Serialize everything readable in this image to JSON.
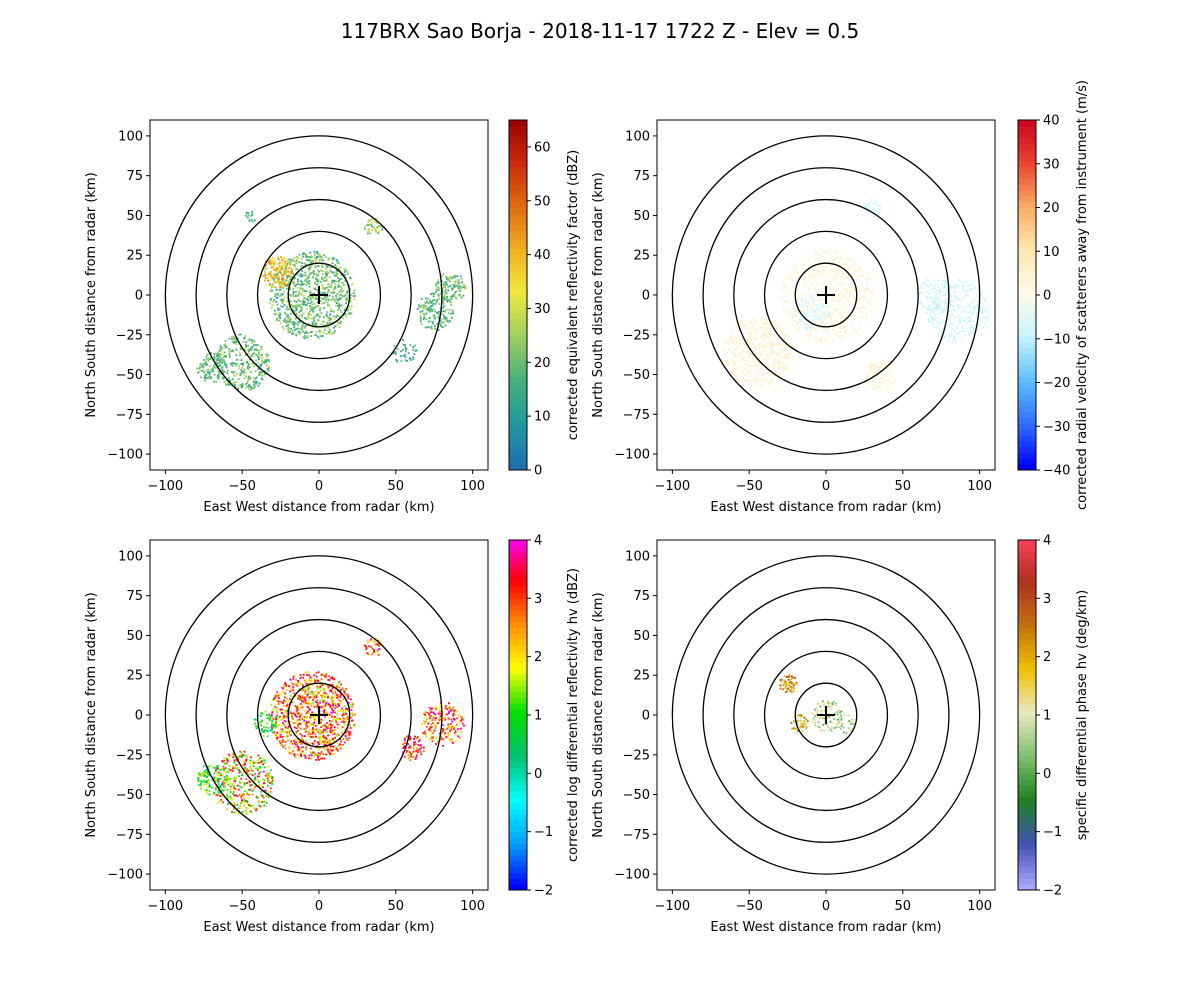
{
  "figure": {
    "title": "117BRX Sao Borja - 2018-11-17 1722 Z -  Elev = 0.5"
  },
  "chart_data": [
    {
      "type": "heatmap",
      "panel": "top-left",
      "field": "reflectivity",
      "xlabel": "East West distance from radar (km)",
      "ylabel": "North South distance from radar (km)",
      "xlim": [
        -110,
        110
      ],
      "ylim": [
        -110,
        110
      ],
      "xticks": [
        -100,
        -50,
        0,
        50,
        100
      ],
      "yticks": [
        -100,
        -75,
        -50,
        -25,
        0,
        25,
        50,
        75,
        100
      ],
      "range_rings_km": [
        20,
        40,
        60,
        80,
        100
      ],
      "colorbar": {
        "label": "corrected equivalent reflectivity factor (dBZ)",
        "min": 0,
        "max": 65,
        "ticks": [
          0,
          10,
          20,
          30,
          40,
          50,
          60
        ],
        "colors": [
          "#1f6fae",
          "#1f9aa0",
          "#48b07a",
          "#9ed060",
          "#f0e840",
          "#f0b020",
          "#e06a10",
          "#c82808",
          "#980000"
        ]
      }
    },
    {
      "type": "heatmap",
      "panel": "top-right",
      "field": "velocity",
      "xlabel": "East West distance from radar (km)",
      "ylabel": "North South distance from radar (km)",
      "xlim": [
        -110,
        110
      ],
      "ylim": [
        -110,
        110
      ],
      "xticks": [
        -100,
        -50,
        0,
        50,
        100
      ],
      "yticks": [
        -100,
        -75,
        -50,
        -25,
        0,
        25,
        50,
        75,
        100
      ],
      "range_rings_km": [
        20,
        40,
        60,
        80,
        100
      ],
      "colorbar": {
        "label": "corrected radial velocity of scatterers away from instrument (m/s)",
        "min": -40,
        "max": 40,
        "ticks": [
          -40,
          -30,
          -20,
          -10,
          0,
          10,
          20,
          30,
          40
        ],
        "colors": [
          "#0000ff",
          "#2f6fff",
          "#60c0ff",
          "#c8f4ff",
          "#fffbe8",
          "#fde6b0",
          "#f8a860",
          "#e84030",
          "#c80020"
        ]
      }
    },
    {
      "type": "heatmap",
      "panel": "bottom-left",
      "field": "differential_reflectivity",
      "xlabel": "East West distance from radar (km)",
      "ylabel": "North South distance from radar (km)",
      "xlim": [
        -110,
        110
      ],
      "ylim": [
        -110,
        110
      ],
      "xticks": [
        -100,
        -50,
        0,
        50,
        100
      ],
      "yticks": [
        -100,
        -75,
        -50,
        -25,
        0,
        25,
        50,
        75,
        100
      ],
      "range_rings_km": [
        20,
        40,
        60,
        80,
        100
      ],
      "colorbar": {
        "label": "corrected log differential reflectivity hv (dBZ)",
        "min": -2,
        "max": 4,
        "ticks": [
          -2,
          -1,
          0,
          1,
          2,
          3,
          4
        ],
        "colors": [
          "#0000ff",
          "#00a0ff",
          "#00ffff",
          "#00c070",
          "#00e000",
          "#ffff00",
          "#ff9000",
          "#ff0000",
          "#ff00ff"
        ]
      }
    },
    {
      "type": "heatmap",
      "panel": "bottom-right",
      "field": "specific_differential_phase",
      "xlabel": "East West distance from radar (km)",
      "ylabel": "North South distance from radar (km)",
      "xlim": [
        -110,
        110
      ],
      "ylim": [
        -110,
        110
      ],
      "xticks": [
        -100,
        -50,
        0,
        50,
        100
      ],
      "yticks": [
        -100,
        -75,
        -50,
        -25,
        0,
        25,
        50,
        75,
        100
      ],
      "range_rings_km": [
        20,
        40,
        60,
        80,
        100
      ],
      "colorbar": {
        "label": "specific differential phase hv (deg/km)",
        "min": -2,
        "max": 4,
        "ticks": [
          -2,
          -1,
          0,
          1,
          2,
          3,
          4
        ],
        "colors": [
          "#a8a8ff",
          "#4050b0",
          "#208020",
          "#80c070",
          "#e8e8c0",
          "#f0c000",
          "#c07010",
          "#b03020",
          "#ff4060"
        ]
      }
    }
  ]
}
